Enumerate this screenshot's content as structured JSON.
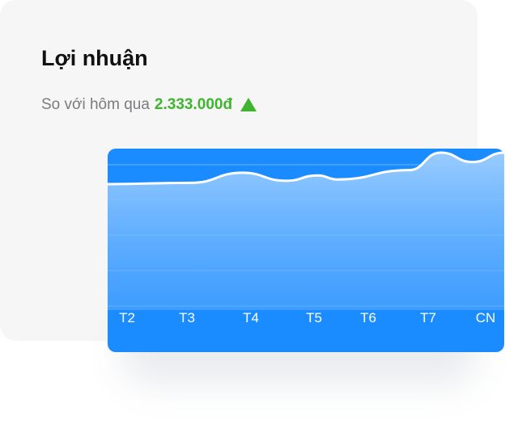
{
  "card": {
    "title": "Lợi nhuận",
    "compare_label": "So với hôm qua",
    "compare_value": "2.333.000đ",
    "trend_icon": "triangle-up-icon",
    "trend_color": "#3fb52f"
  },
  "chart_data": {
    "type": "area",
    "categories": [
      "T2",
      "T3",
      "T4",
      "T5",
      "T6",
      "T7",
      "CN"
    ],
    "points": [
      {
        "x": 0.0,
        "y": 0.53
      },
      {
        "x": 0.21,
        "y": 0.55
      },
      {
        "x": 0.34,
        "y": 0.7
      },
      {
        "x": 0.45,
        "y": 0.58
      },
      {
        "x": 0.53,
        "y": 0.66
      },
      {
        "x": 0.58,
        "y": 0.6
      },
      {
        "x": 0.76,
        "y": 0.74
      },
      {
        "x": 0.84,
        "y": 1.0
      },
      {
        "x": 0.92,
        "y": 0.86
      },
      {
        "x": 1.0,
        "y": 1.0
      }
    ],
    "grid": true,
    "fill_color": "#8cc4ff",
    "background_color": "#1b8cff",
    "line_color": "#ffffff"
  }
}
